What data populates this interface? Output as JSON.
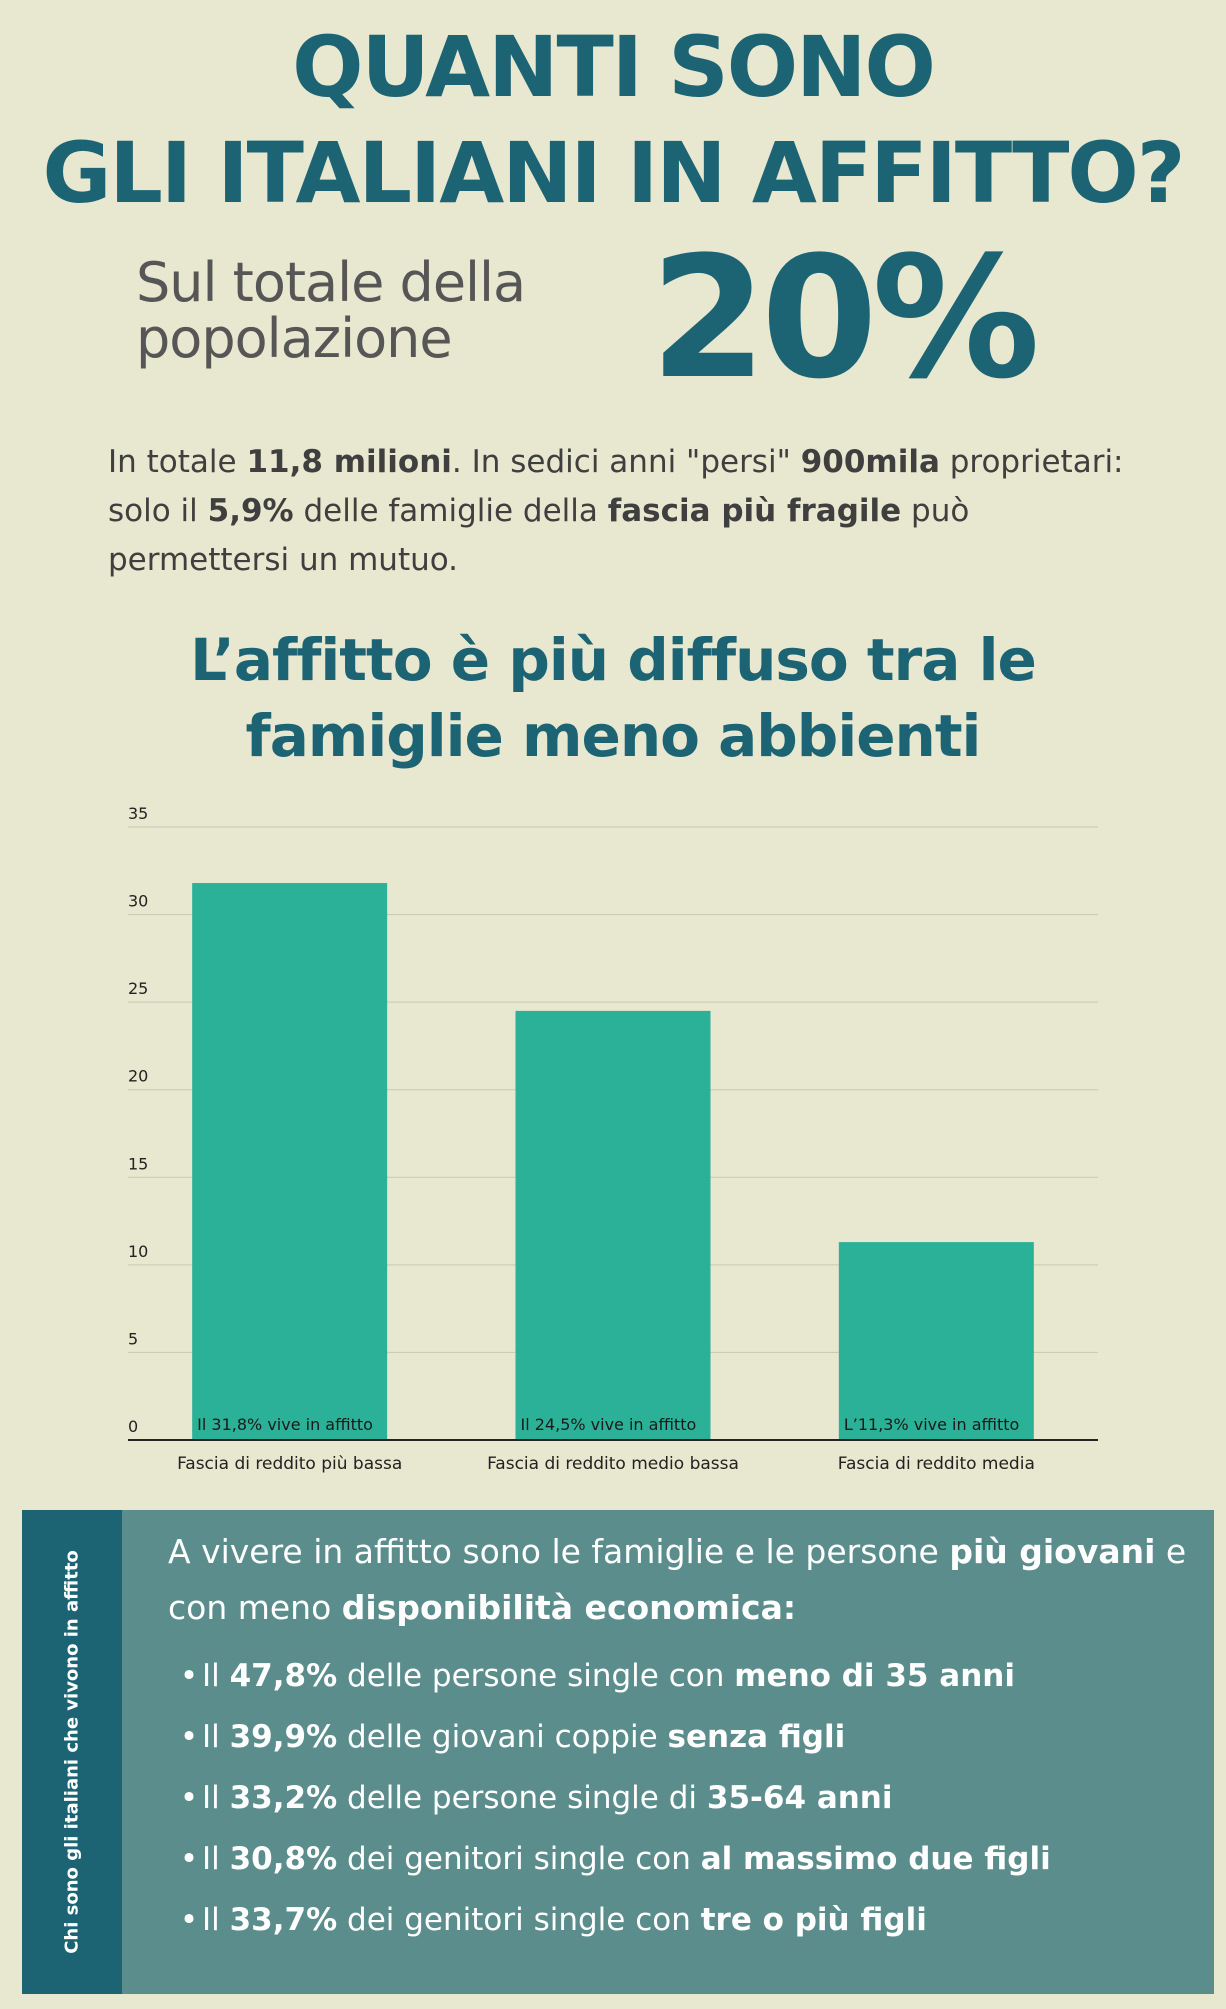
{
  "headline": {
    "line1": "QUANTI SONO",
    "line2": "GLI ITALIANI IN AFFITTO?"
  },
  "subtitle": {
    "line1": "Sul totale della",
    "line2": "popolazione"
  },
  "big_percent": "20%",
  "intro": {
    "t1": "In totale ",
    "b1": "11,8 milioni",
    "t2": ". In sedici anni \"persi\" ",
    "b2": "900mila",
    "t3": " proprietari: solo il ",
    "b3": "5,9%",
    "t4": " delle famiglie della ",
    "b4": "fascia più fragile",
    "t5": " può permettersi un mutuo."
  },
  "chart_title": {
    "line1": "L’affitto è più diffuso tra le",
    "line2": "famiglie meno abbienti"
  },
  "chart_data": {
    "type": "bar",
    "categories": [
      "Fascia di reddito più bassa",
      "Fascia di reddito medio bassa",
      "Fascia di reddito media"
    ],
    "values": [
      31.8,
      24.5,
      11.3
    ],
    "data_labels": [
      "Il 31,8% vive in affitto",
      "Il 24,5% vive in affitto",
      "L’11,3% vive in affitto"
    ],
    "yticks": [
      0,
      5,
      10,
      15,
      20,
      25,
      30,
      35
    ],
    "ylim": [
      0,
      35
    ],
    "grid": true,
    "bar_color": "#2bb197",
    "grid_color": "#c9c8b0"
  },
  "panel": {
    "side_label": "Chi sono gli italiani che vivono in affitto",
    "intro": {
      "t1": "A vivere in affitto sono le famiglie e le persone ",
      "b1": "più giovani",
      "t2": " e con meno ",
      "b2": "disponibilità economica:"
    },
    "bullet_glyph": "•",
    "items": [
      {
        "pre": "Il ",
        "pct": "47,8%",
        "mid": " delle persone single con ",
        "bold": "meno di 35 anni"
      },
      {
        "pre": "Il ",
        "pct": "39,9%",
        "mid": " delle giovani coppie ",
        "bold": "senza figli"
      },
      {
        "pre": "Il ",
        "pct": "33,2%",
        "mid": " delle persone single di ",
        "bold": "35-64 anni"
      },
      {
        "pre": "Il ",
        "pct": "30,8%",
        "mid": " dei genitori single con ",
        "bold": "al massimo due figli"
      },
      {
        "pre": "Il ",
        "pct": "33,7%",
        "mid": " dei genitori single con ",
        "bold": "tre o più figli"
      }
    ]
  },
  "colors": {
    "background": "#e8e7cf",
    "accent": "#1c6474",
    "panel": "#5a8d8b"
  }
}
